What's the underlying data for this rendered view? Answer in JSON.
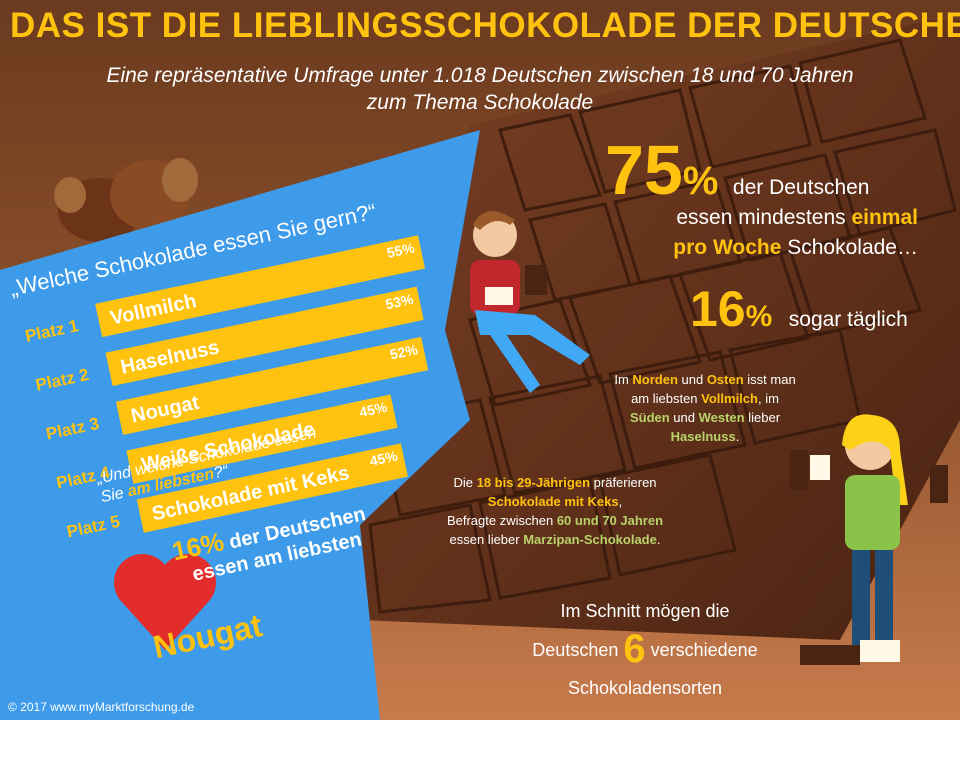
{
  "header": {
    "title": "DAS IST DIE LIEBLINGSSCHOKOLADE DER DEUTSCHEN",
    "subtitle_line1": "Eine repräsentative Umfrage unter 1.018 Deutschen zwischen 18 und 70 Jahren",
    "subtitle_line2": "zum Thema Schokolade"
  },
  "chart_data": {
    "type": "bar",
    "title": "„Welche Schokolade essen Sie gern?“",
    "ranks": [
      "Platz 1",
      "Platz 2",
      "Platz 3",
      "Platz 4",
      "Platz 5"
    ],
    "categories": [
      "Vollmilch",
      "Haselnuss",
      "Nougat",
      "Weiße Schokolade",
      "Schokolade mit Keks"
    ],
    "values": [
      55,
      53,
      52,
      45,
      45
    ],
    "value_labels": [
      "55%",
      "53%",
      "52%",
      "45%",
      "45%"
    ],
    "xlim": [
      0,
      55
    ],
    "colors": {
      "bar": "#ffc20e",
      "panel": "#3d9be9",
      "rank": "#ffc20e"
    }
  },
  "favorite": {
    "question_part1": "„Und welche Schokolade essen",
    "question_part2": "Sie ",
    "question_highlight": "am liebsten",
    "question_part3": "?“",
    "percent": "16%",
    "text_line1": "der Deutschen",
    "text_line2": "essen am liebsten",
    "answer": "Nougat"
  },
  "stats": {
    "weekly_percent_number": "75",
    "weekly_percent_sign": "%",
    "weekly_line1": "der Deutschen",
    "weekly_line2_pre": "essen mindestens ",
    "weekly_line2_hl": "einmal",
    "weekly_line3_hl": "pro Woche",
    "weekly_line3_post": " Schokolade…",
    "daily_number": "16",
    "daily_sign": "%",
    "daily_text": "sogar täglich"
  },
  "region": {
    "l1_a": "Im ",
    "l1_b": "Norden",
    "l1_c": " und ",
    "l1_d": "Osten",
    "l1_e": " isst man",
    "l2_a": "am liebsten ",
    "l2_b": "Vollmilch",
    "l2_c": ", im",
    "l3_a": "Süden",
    "l3_b": " und ",
    "l3_c": "Westen",
    "l3_d": " lieber",
    "l4_a": "Haselnuss",
    "l4_b": "."
  },
  "age": {
    "l1_a": "Die ",
    "l1_b": "18 bis 29-Jährigen",
    "l1_c": " präferieren",
    "l2_a": "Schokolade mit Keks",
    "l2_b": ",",
    "l3_a": "Befragte zwischen ",
    "l3_b": "60 und 70 Jahren",
    "l4_a": "essen lieber ",
    "l4_b": "Marzipan-Schokolade",
    "l4_c": "."
  },
  "average": {
    "line1": "Im Schnitt mögen die",
    "line2_pre": "Deutschen ",
    "number": "6",
    "line2_post": " verschiedene",
    "line3": "Schokoladensorten"
  },
  "footer": {
    "copyright": "© 2017 www.myMarktforschung.de"
  }
}
